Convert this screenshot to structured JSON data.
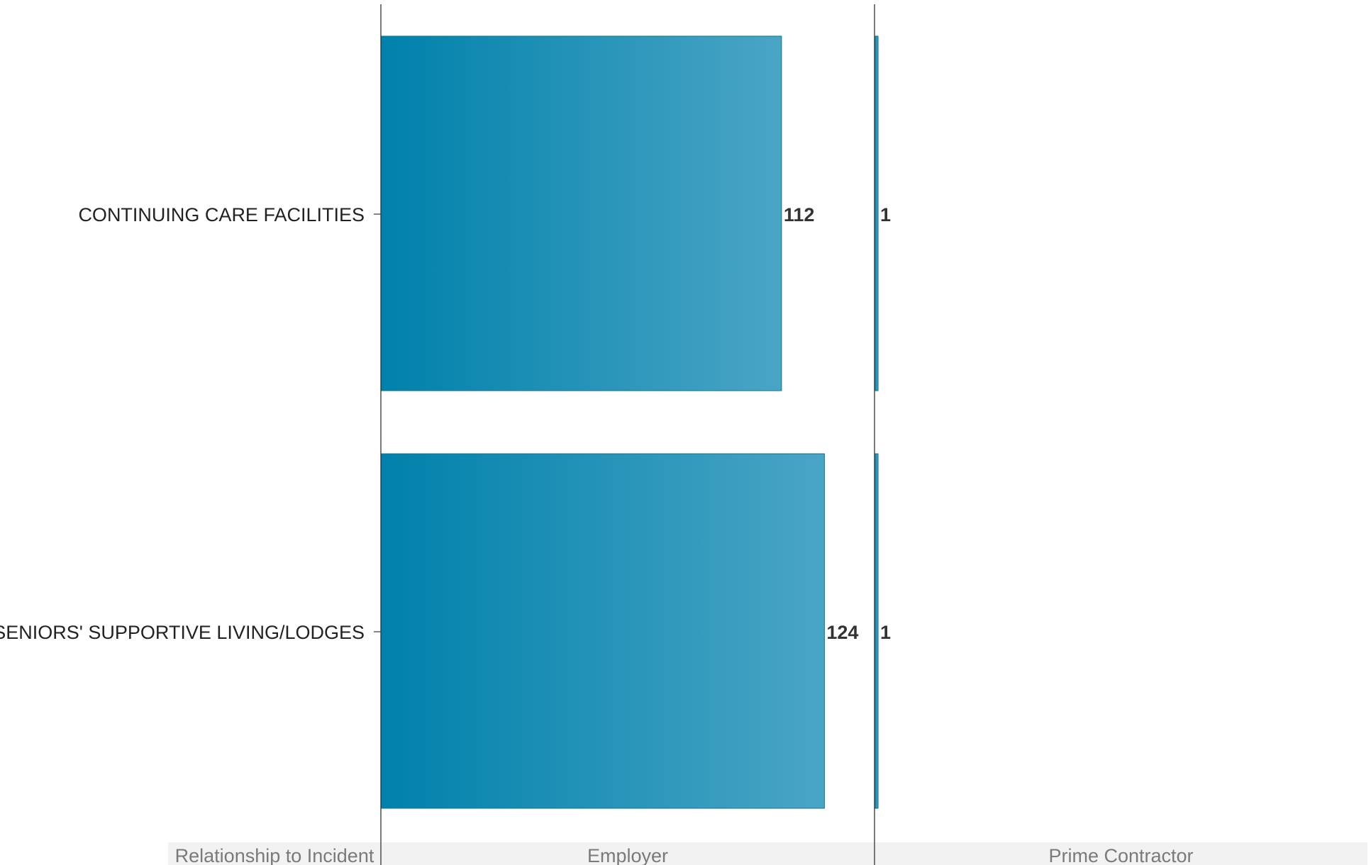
{
  "chart_data": {
    "type": "bar",
    "orientation": "horizontal",
    "categories": [
      "CONTINUING CARE FACILITIES",
      "SENIORS' SUPPORTIVE LIVING/LODGES"
    ],
    "facet_header": "Relationship to Incident",
    "facets": [
      {
        "label": "Employer",
        "values": [
          112,
          124
        ]
      },
      {
        "label": "Prime Contractor",
        "values": [
          1,
          1
        ]
      }
    ],
    "xlim": [
      0,
      138
    ],
    "grid": false,
    "legend": "none",
    "colors": {
      "bar_start": "#0081ab",
      "bar_end": "#4aa5c5",
      "bar_stroke": "#0e7390",
      "footer_bg": "#f2f2f2"
    }
  }
}
